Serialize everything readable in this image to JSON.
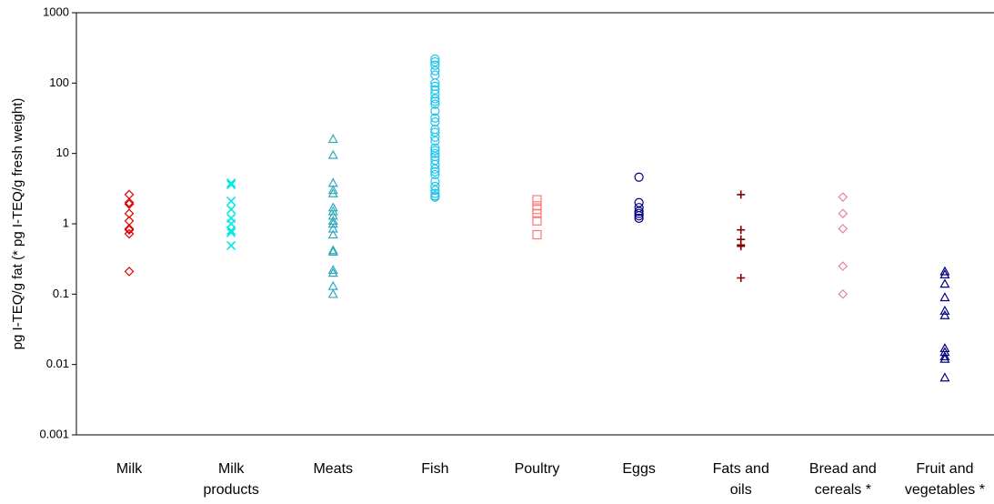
{
  "chart_data": {
    "type": "strip",
    "y_label": "pg I-TEQ/g fat  (* pg I-TEQ/g fresh weight)",
    "log_y": true,
    "ylim": [
      0.001,
      1000
    ],
    "yticks": [
      1000,
      100,
      10,
      1,
      0.1,
      0.01,
      0.001
    ],
    "categories": [
      "Milk",
      "Milk\nproducts",
      "Meats",
      "Fish",
      "Poultry",
      "Eggs",
      "Fats and\noils",
      "Bread and\ncereals *",
      "Fruit and\nvegetables *"
    ],
    "colors": [
      "#e00000",
      "#00e8e8",
      "#30a8bc",
      "#20c4ec",
      "#ff7878",
      "#000080",
      "#800000",
      "#e08890",
      "#000080"
    ],
    "markers": [
      "diamond",
      "x",
      "triangle",
      "circle",
      "square",
      "circle",
      "plus",
      "diamond",
      "triangle"
    ],
    "values": [
      [
        2.6,
        2.0,
        1.9,
        1.4,
        1.1,
        0.85,
        0.82,
        0.72,
        0.21
      ],
      [
        3.8,
        3.6,
        2.1,
        1.6,
        1.2,
        1.0,
        0.8,
        0.75,
        0.49
      ],
      [
        16,
        9.5,
        3.8,
        3.0,
        2.7,
        1.7,
        1.5,
        1.3,
        1.1,
        1.0,
        0.85,
        0.7,
        0.42,
        0.4,
        0.22,
        0.2,
        0.13,
        0.1
      ],
      [
        220,
        200,
        180,
        150,
        130,
        100,
        90,
        80,
        70,
        60,
        55,
        50,
        40,
        32,
        28,
        22,
        20,
        17,
        15,
        12,
        11,
        10,
        9,
        8,
        7,
        6,
        5.5,
        5,
        4,
        3.4,
        3,
        2.7,
        2.5,
        2.4
      ],
      [
        2.2,
        1.8,
        1.6,
        1.4,
        1.1,
        0.7
      ],
      [
        4.6,
        2.0,
        1.7,
        1.5,
        1.4,
        1.3,
        1.2
      ],
      [
        2.6,
        0.82,
        0.6,
        0.5,
        0.48,
        0.17
      ],
      [
        2.4,
        1.4,
        0.85,
        0.25,
        0.1
      ],
      [
        0.21,
        0.19,
        0.14,
        0.09,
        0.058,
        0.05,
        0.017,
        0.015,
        0.013,
        0.012,
        0.0065
      ]
    ]
  }
}
